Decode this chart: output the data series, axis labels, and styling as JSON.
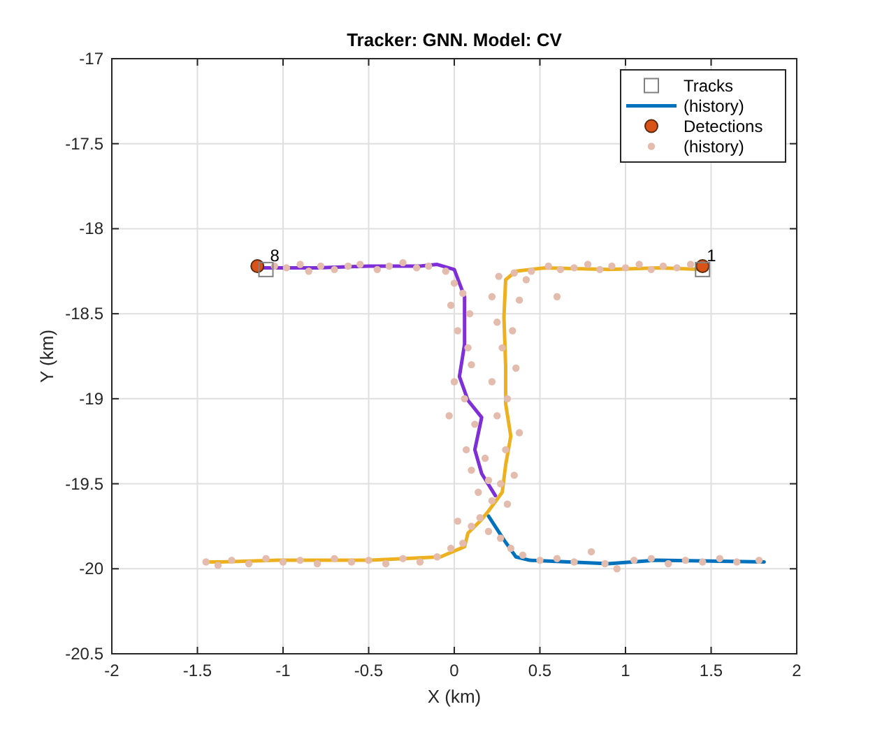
{
  "chart_data": {
    "type": "line",
    "title": "Tracker: GNN. Model: CV",
    "xlabel": "X (km)",
    "ylabel": "Y (km)",
    "xlim": [
      -2,
      2
    ],
    "xticks": [
      -2,
      -1.5,
      -1,
      -0.5,
      0,
      0.5,
      1,
      1.5,
      2
    ],
    "ylim": [
      -20.5,
      -17
    ],
    "yticks": [
      -20.5,
      -20,
      -19.5,
      -19,
      -18.5,
      -18,
      -17.5,
      -17
    ],
    "grid": true,
    "legend": "top right",
    "series": [
      {
        "name": "Tracks",
        "type": "scatter",
        "marker": "square",
        "color": "#808080",
        "x": [
          -1.1,
          1.45
        ],
        "values": [
          -18.24,
          -18.24
        ]
      },
      {
        "name": "(history)",
        "marker": "none",
        "color": "#0072bd",
        "x": [
          0.2,
          0.29,
          0.36,
          0.44,
          0.9,
          1.18,
          1.81
        ],
        "values": [
          -19.69,
          -19.83,
          -19.93,
          -19.95,
          -19.97,
          -19.95,
          -19.96
        ]
      },
      {
        "marker": "none",
        "color": "#edb120",
        "x": [
          -1.43,
          -1.36,
          -1.03,
          -0.49,
          -0.08,
          0.06,
          0.08,
          0.16,
          0.2,
          0.28,
          0.3,
          0.33,
          0.3,
          0.3,
          0.29,
          0.3,
          0.36,
          0.53,
          0.9,
          1.2,
          1.45
        ],
        "values": [
          -19.96,
          -19.96,
          -19.95,
          -19.95,
          -19.93,
          -19.87,
          -19.79,
          -19.71,
          -19.66,
          -19.55,
          -19.39,
          -19.22,
          -19.03,
          -18.81,
          -18.52,
          -18.3,
          -18.25,
          -18.23,
          -18.24,
          -18.23,
          -18.24
        ]
      },
      {
        "marker": "none",
        "color": "#7e2fd8",
        "x": [
          -1.13,
          -0.8,
          -0.5,
          -0.2,
          -0.1,
          0,
          0.06,
          0.06,
          0.03,
          0.08,
          0.16,
          0.12,
          0.16,
          0.24
        ],
        "values": [
          -18.23,
          -18.23,
          -18.22,
          -18.22,
          -18.21,
          -18.24,
          -18.4,
          -18.68,
          -18.87,
          -19.01,
          -19.11,
          -19.3,
          -19.44,
          -19.57
        ]
      },
      {
        "name": "Detections",
        "type": "scatter",
        "marker": "circle",
        "color": "#d95319",
        "x": [
          -1.15,
          1.45
        ],
        "values": [
          -18.22,
          -18.22
        ]
      },
      {
        "name": "(history)",
        "type": "scatter",
        "marker": "circle",
        "color": "#e3bcad",
        "x": [
          -1.05,
          -0.98,
          -0.9,
          -0.85,
          -0.78,
          -0.7,
          -0.62,
          -0.55,
          -0.45,
          -0.38,
          -0.3,
          -0.22,
          -0.15,
          -0.05,
          0,
          0.05,
          -0.02,
          0.09,
          0.02,
          0.08,
          0.1,
          0,
          0.06,
          -0.03,
          0.12,
          0.07,
          0.18,
          0.1,
          0.2,
          0.14,
          0.22,
          0.26,
          0.35,
          0.42,
          0.22,
          0.38,
          0.25,
          0.34,
          0.28,
          0.36,
          0.22,
          0.31,
          0.25,
          0.38,
          0.3,
          0.35,
          0.27,
          0.31,
          0.55,
          0.62,
          0.7,
          0.78,
          0.85,
          0.92,
          1,
          1.08,
          1.15,
          1.22,
          1.3,
          1.38,
          0.6,
          0.45,
          0.15,
          0.1,
          0.2,
          0.05,
          -0.02,
          0.27,
          0.33,
          0.4,
          0.02,
          -1.45,
          -1.38,
          -1.3,
          -1.2,
          -1.1,
          -1,
          -0.9,
          -0.8,
          -0.7,
          -0.6,
          -0.5,
          -0.4,
          -0.3,
          -0.2,
          -0.1,
          0.5,
          0.6,
          0.7,
          0.8,
          0.88,
          0.95,
          1.05,
          1.15,
          1.25,
          1.35,
          1.45,
          1.55,
          1.65,
          1.78
        ],
        "values": [
          -18.22,
          -18.23,
          -18.21,
          -18.25,
          -18.22,
          -18.24,
          -18.22,
          -18.21,
          -18.24,
          -18.22,
          -18.2,
          -18.23,
          -18.22,
          -18.25,
          -18.32,
          -18.38,
          -18.45,
          -18.5,
          -18.6,
          -18.7,
          -18.8,
          -18.9,
          -19,
          -19.1,
          -19.15,
          -19.3,
          -19.35,
          -19.42,
          -19.48,
          -19.55,
          -19.6,
          -18.28,
          -18.26,
          -18.3,
          -18.4,
          -18.42,
          -18.55,
          -18.6,
          -18.7,
          -18.82,
          -18.9,
          -19,
          -19.1,
          -19.2,
          -19.3,
          -19.45,
          -19.5,
          -19.62,
          -18.22,
          -18.24,
          -18.23,
          -18.21,
          -18.24,
          -18.22,
          -18.23,
          -18.21,
          -18.24,
          -18.22,
          -18.23,
          -18.21,
          -18.4,
          -18.25,
          -19.7,
          -19.75,
          -19.78,
          -19.85,
          -19.88,
          -19.82,
          -19.88,
          -19.92,
          -19.72,
          -19.96,
          -19.98,
          -19.95,
          -19.97,
          -19.94,
          -19.96,
          -19.95,
          -19.97,
          -19.94,
          -19.96,
          -19.95,
          -19.97,
          -19.94,
          -19.96,
          -19.93,
          -19.95,
          -19.94,
          -19.96,
          -19.9,
          -19.97,
          -20,
          -19.95,
          -19.94,
          -19.97,
          -19.95,
          -19.96,
          -19.94,
          -19.96,
          -19.95
        ]
      }
    ],
    "annotations": [
      {
        "text": "8",
        "x": -1.1,
        "y": -18.24
      },
      {
        "text": "1",
        "x": 1.45,
        "y": -18.24
      }
    ]
  }
}
